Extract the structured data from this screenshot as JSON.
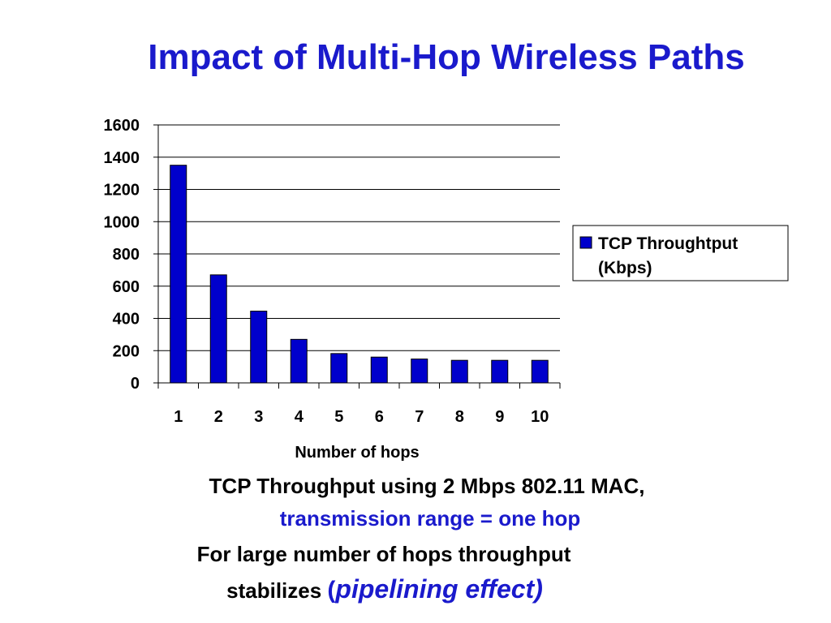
{
  "slide": {
    "title": "Impact of Multi-Hop Wireless Paths",
    "caption_line1": "TCP Throughput using 2 Mbps 802.11 MAC,",
    "caption_line2": "transmission range = one hop",
    "caption_line3": "For large number of hops throughput",
    "caption_line4_prefix": "stabilizes ",
    "caption_line4_paren_open": "(",
    "caption_line4_emphasis": "pipelining effect)"
  },
  "colors": {
    "title": "#1a1acc",
    "bar_fill": "#0000cc",
    "bar_stroke": "#000000",
    "accent_text": "#1a1acc"
  },
  "chart_data": {
    "type": "bar",
    "categories": [
      "1",
      "2",
      "3",
      "4",
      "5",
      "6",
      "7",
      "8",
      "9",
      "10"
    ],
    "series": [
      {
        "name": "TCP Throughtput (Kbps)",
        "legend_lines": [
          "TCP Throughtput",
          "(Kbps)"
        ],
        "values": [
          1350,
          670,
          445,
          270,
          182,
          160,
          148,
          140,
          140,
          140
        ]
      }
    ],
    "xlabel": "Number of hops",
    "ylabel": "",
    "ylim": [
      0,
      1600
    ],
    "yticks": [
      "0",
      "200",
      "400",
      "600",
      "800",
      "1000",
      "1200",
      "1400",
      "1600"
    ],
    "grid": "horizontal",
    "legend": "right"
  }
}
